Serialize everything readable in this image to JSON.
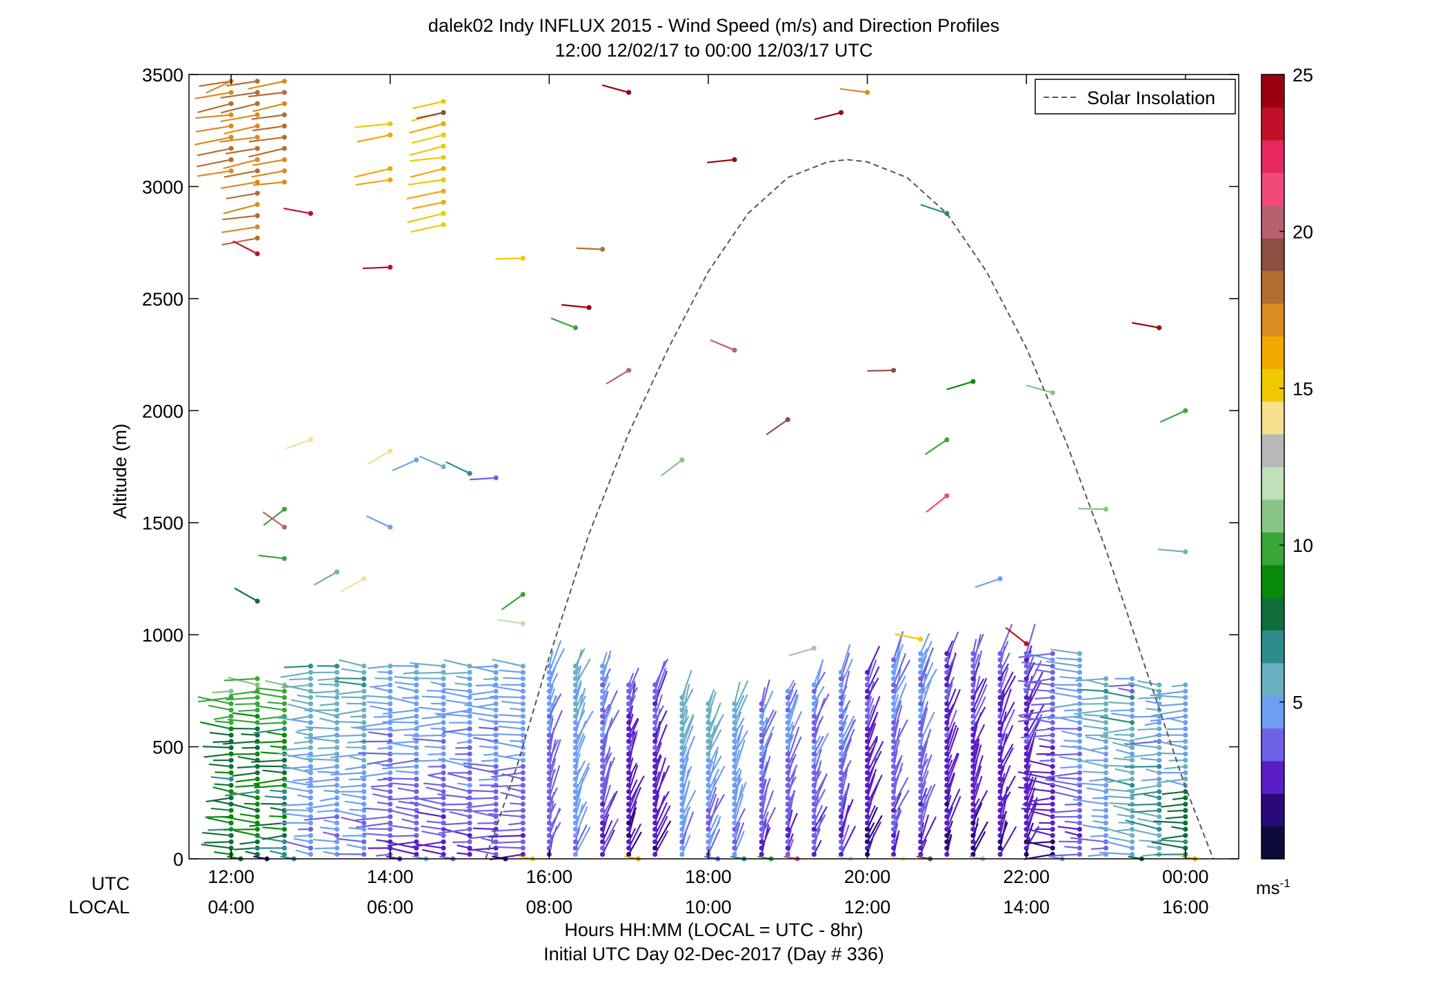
{
  "title_line1": "dalek02 Indy INFLUX 2015 - Wind Speed (m/s) and Direction Profiles",
  "title_line2": "12:00 12/02/17 to 00:00 12/03/17  UTC",
  "utc_row_label": "UTC",
  "local_row_label": "LOCAL",
  "xlabel_line1": "Hours HH:MM  (LOCAL = UTC - 8hr)",
  "xlabel_line2": "Initial UTC Day 02-Dec-2017 (Day # 336)",
  "ylabel": "Altitude (m)",
  "colorbar_unit": "ms",
  "colorbar_unit_exp": "-1",
  "colors": {
    "grid_frame": "#000000",
    "insolation_curve": "#555555",
    "background": "#ffffff"
  },
  "chart_data": {
    "type": "wind-barb-profile",
    "title": "dalek02 Indy INFLUX 2015 - Wind Speed (m/s) and Direction Profiles",
    "subtitle": "12:00 12/02/17 to 00:00 12/03/17  UTC",
    "xlabel": "Hours HH:MM  (LOCAL = UTC - 8hr)",
    "ylabel": "Altitude (m)",
    "xlim_hours_utc": [
      11.47,
      24.67
    ],
    "ylim": [
      0,
      3500
    ],
    "x_ticks_utc": [
      "12:00",
      "14:00",
      "16:00",
      "18:00",
      "20:00",
      "22:00",
      "00:00"
    ],
    "x_ticks_local": [
      "04:00",
      "06:00",
      "08:00",
      "10:00",
      "12:00",
      "14:00",
      "16:00"
    ],
    "x_tick_hours": [
      12,
      14,
      16,
      18,
      20,
      22,
      24
    ],
    "y_ticks": [
      0,
      500,
      1000,
      1500,
      2000,
      2500,
      3000,
      3500
    ],
    "legend": {
      "entries": [
        "Solar Insolation"
      ],
      "placement": "top-right"
    },
    "colorbar": {
      "range": [
        0,
        25
      ],
      "ticks": [
        5,
        10,
        15,
        20,
        25
      ],
      "unit": "ms-1",
      "colors": [
        "#0c0a3a",
        "#2a0a78",
        "#5a1ec4",
        "#6f62e6",
        "#6d9ef2",
        "#6ab0c2",
        "#2e8c8c",
        "#0f6e3a",
        "#0a8a0a",
        "#3aa63a",
        "#86c486",
        "#bfe0b8",
        "#b8b8b8",
        "#f5e090",
        "#f0c800",
        "#f0a800",
        "#d98a20",
        "#b36e30",
        "#8a5040",
        "#b86070",
        "#f04a7a",
        "#e82860",
        "#c0102a",
        "#9a0010"
      ]
    },
    "solar_insolation": {
      "style": "dashed",
      "points": [
        [
          15.2,
          0
        ],
        [
          15.6,
          420
        ],
        [
          16.0,
          900
        ],
        [
          16.5,
          1450
        ],
        [
          17.0,
          1900
        ],
        [
          17.5,
          2280
        ],
        [
          18.0,
          2620
        ],
        [
          18.5,
          2880
        ],
        [
          19.0,
          3040
        ],
        [
          19.5,
          3110
        ],
        [
          19.75,
          3120
        ],
        [
          20.0,
          3110
        ],
        [
          20.5,
          3040
        ],
        [
          21.0,
          2880
        ],
        [
          21.5,
          2620
        ],
        [
          22.0,
          2280
        ],
        [
          22.5,
          1860
        ],
        [
          23.0,
          1380
        ],
        [
          23.5,
          850
        ],
        [
          24.0,
          320
        ],
        [
          24.35,
          0
        ]
      ]
    },
    "wind_profiles": {
      "description": "Each barb column = one profile time; marker at altitude, stem direction = wind direction, color = speed (m/s)",
      "profile_times_utc_hours": [
        12.0,
        12.33,
        12.67,
        13.0,
        13.33,
        13.67,
        14.0,
        14.33,
        14.67,
        15.0,
        15.33,
        15.67,
        16.0,
        16.33,
        16.67,
        17.0,
        17.33,
        17.67,
        18.0,
        18.33,
        18.67,
        19.0,
        19.33,
        19.67,
        20.0,
        20.33,
        20.67,
        21.0,
        21.33,
        21.67,
        22.0,
        22.33,
        22.67,
        23.0,
        23.33,
        23.67,
        24.0
      ],
      "boundary_layer_top_m": [
        760,
        820,
        800,
        880,
        860,
        860,
        860,
        860,
        860,
        860,
        860,
        860,
        860,
        860,
        870,
        800,
        780,
        720,
        700,
        700,
        700,
        760,
        790,
        840,
        850,
        900,
        920,
        920,
        920,
        920,
        920,
        920,
        920,
        820,
        810,
        800,
        790
      ],
      "near_surface_speed_ms": [
        8,
        8,
        8,
        4,
        4,
        4,
        3,
        3,
        3,
        3,
        3,
        3,
        3,
        4,
        3,
        2,
        2,
        4,
        4,
        4,
        3,
        3,
        3,
        3,
        2,
        3,
        3,
        2,
        2,
        2,
        2,
        2,
        3,
        4,
        5,
        6,
        7
      ],
      "upper_sparse_examples": [
        {
          "t": 12.0,
          "alt": 3470,
          "speed": 17
        },
        {
          "t": 12.33,
          "alt": 2700,
          "speed": 23
        },
        {
          "t": 13.0,
          "alt": 2880,
          "speed": 23
        },
        {
          "t": 14.0,
          "alt": 2640,
          "speed": 23
        },
        {
          "t": 14.67,
          "alt": 3330,
          "speed": 19
        },
        {
          "t": 15.67,
          "alt": 2680,
          "speed": 15
        },
        {
          "t": 16.5,
          "alt": 2460,
          "speed": 24
        },
        {
          "t": 17.0,
          "alt": 3420,
          "speed": 24
        },
        {
          "t": 18.33,
          "alt": 3120,
          "speed": 24
        },
        {
          "t": 19.67,
          "alt": 3330,
          "speed": 24
        },
        {
          "t": 20.0,
          "alt": 3420,
          "speed": 17
        },
        {
          "t": 21.0,
          "alt": 2880,
          "speed": 7
        },
        {
          "t": 21.33,
          "alt": 2130,
          "speed": 9
        },
        {
          "t": 22.33,
          "alt": 2080,
          "speed": 11
        },
        {
          "t": 23.67,
          "alt": 2370,
          "speed": 24
        },
        {
          "t": 24.0,
          "alt": 2000,
          "speed": 10
        },
        {
          "t": 23.0,
          "alt": 1560,
          "speed": 11
        },
        {
          "t": 24.0,
          "alt": 1370,
          "speed": 6
        }
      ]
    }
  }
}
